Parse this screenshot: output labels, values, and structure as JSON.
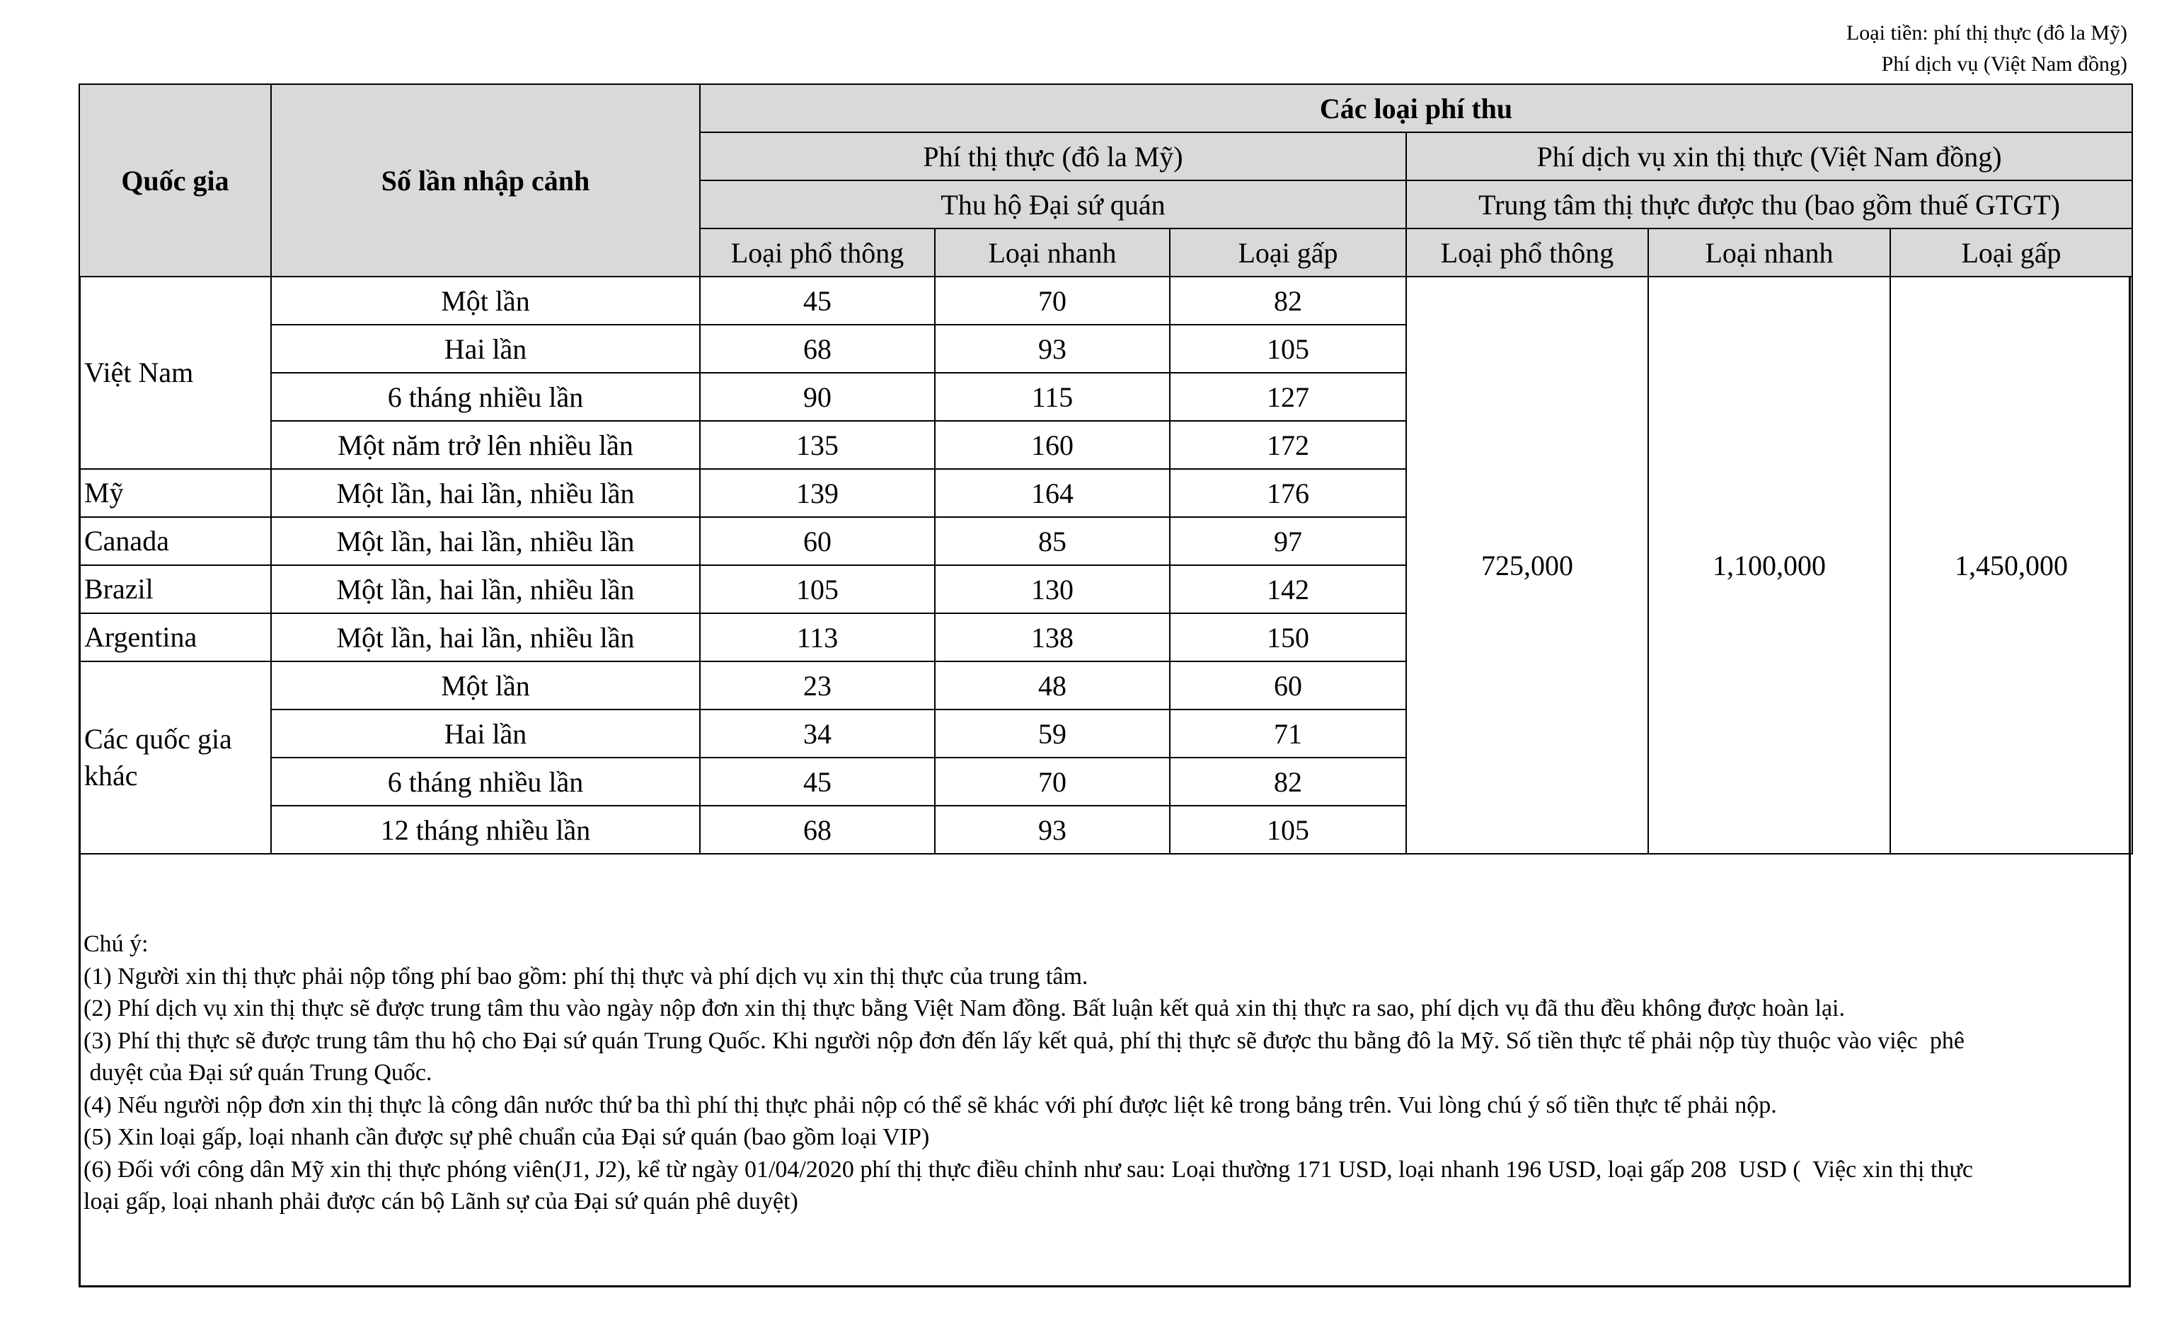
{
  "currency_note": [
    "Loại tiền: phí thị thực (đô la Mỹ)",
    "Phí dịch vụ (Việt Nam đồng)"
  ],
  "header": {
    "country": "Quốc gia",
    "entries": "Số lần nhập cảnh",
    "fee_types": "Các loại phí thu",
    "visa_fee": "Phí thị thực (đô la Mỹ)",
    "service_fee": "Phí dịch vụ xin thị thực (Việt Nam đồng)",
    "visa_fee_sub": "Thu hộ Đại sứ quán",
    "service_fee_sub": "Trung tâm thị thực được thu (bao gồm thuế GTGT)",
    "cols": [
      "Loại phổ thông",
      "Loại nhanh",
      "Loại gấp",
      "Loại phổ thông",
      "Loại nhanh",
      "Loại gấp"
    ]
  },
  "groups": [
    {
      "country": "Việt Nam",
      "rows": [
        {
          "entries": "Một lần",
          "fees": [
            "45",
            "70",
            "82"
          ]
        },
        {
          "entries": "Hai lần",
          "fees": [
            "68",
            "93",
            "105"
          ]
        },
        {
          "entries": "6 tháng nhiều lần",
          "fees": [
            "90",
            "115",
            "127"
          ]
        },
        {
          "entries": "Một năm trở lên nhiều lần",
          "fees": [
            "135",
            "160",
            "172"
          ]
        }
      ]
    },
    {
      "country": "Mỹ",
      "rows": [
        {
          "entries": "Một lần, hai lần, nhiều lần",
          "fees": [
            "139",
            "164",
            "176"
          ]
        }
      ]
    },
    {
      "country": "Canada",
      "rows": [
        {
          "entries": "Một lần, hai lần, nhiều lần",
          "fees": [
            "60",
            "85",
            "97"
          ]
        }
      ]
    },
    {
      "country": "Brazil",
      "rows": [
        {
          "entries": "Một lần, hai lần, nhiều lần",
          "fees": [
            "105",
            "130",
            "142"
          ]
        }
      ]
    },
    {
      "country": "Argentina",
      "rows": [
        {
          "entries": "Một lần, hai lần, nhiều lần",
          "fees": [
            "113",
            "138",
            "150"
          ]
        }
      ]
    },
    {
      "country": "Các quốc gia khác",
      "rows": [
        {
          "entries": "Một lần",
          "fees": [
            "23",
            "48",
            "60"
          ]
        },
        {
          "entries": "Hai lần",
          "fees": [
            "34",
            "59",
            "71"
          ]
        },
        {
          "entries": "6 tháng nhiều lần",
          "fees": [
            "45",
            "70",
            "82"
          ]
        },
        {
          "entries": "12 tháng nhiều lần",
          "fees": [
            "68",
            "93",
            "105"
          ]
        }
      ]
    }
  ],
  "service_fees": [
    "725,000",
    "1,100,000",
    "1,450,000"
  ],
  "notes": [
    "Chú ý:",
    "(1) Người xin thị thực phải nộp tổng phí bao gồm: phí thị thực và phí dịch vụ xin thị thực của trung tâm.",
    "(2) Phí dịch vụ xin thị thực sẽ được trung tâm thu vào ngày nộp đơn xin thị thực bằng Việt Nam đồng. Bất luận kết quả xin thị thực ra sao, phí dịch vụ đã thu đều không được hoàn lại.",
    "(3) Phí thị thực sẽ được trung tâm thu hộ cho Đại sứ quán Trung Quốc. Khi người nộp đơn đến lấy kết quả, phí thị thực sẽ được thu bằng đô la Mỹ. Số tiền thực tế phải nộp tùy thuộc vào việc  phê",
    " duyệt của Đại sứ quán Trung Quốc.",
    "(4) Nếu người nộp đơn xin thị thực là công dân nước thứ ba thì phí thị thực phải nộp có thể sẽ khác với phí được liệt kê trong bảng trên. Vui lòng chú ý số tiền thực tế phải nộp.",
    "(5) Xin loại gấp, loại nhanh cần được sự phê chuẩn của Đại sứ quán (bao gồm loại VIP)",
    "(6) Đối với công dân Mỹ xin thị thực phóng viên(J1, J2), kể từ ngày 01/04/2020 phí thị thực điều chỉnh như sau: Loại thường 171 USD, loại nhanh 196 USD, loại gấp 208  USD (  Việc xin thị thực",
    "loại gấp, loại nhanh phải được cán bộ Lãnh sự của Đại sứ quán phê duyệt)"
  ]
}
